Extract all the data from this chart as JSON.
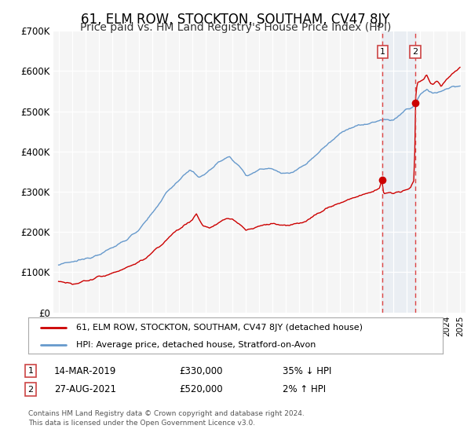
{
  "title": "61, ELM ROW, STOCKTON, SOUTHAM, CV47 8JY",
  "subtitle": "Price paid vs. HM Land Registry's House Price Index (HPI)",
  "ylim": [
    0,
    700000
  ],
  "yticks": [
    0,
    100000,
    200000,
    300000,
    400000,
    500000,
    600000,
    700000
  ],
  "ytick_labels": [
    "£0",
    "£100K",
    "£200K",
    "£300K",
    "£400K",
    "£500K",
    "£600K",
    "£700K"
  ],
  "xlim_start": 1994.6,
  "xlim_end": 2025.4,
  "title_fontsize": 12,
  "subtitle_fontsize": 10,
  "background_color": "#ffffff",
  "plot_bg_color": "#f5f5f5",
  "grid_color": "#ffffff",
  "point1_x": 2019.2,
  "point1_y": 330000,
  "point1_label": "14-MAR-2019",
  "point1_price": "£330,000",
  "point1_hpi": "35% ↓ HPI",
  "point2_x": 2021.65,
  "point2_y": 520000,
  "point2_label": "27-AUG-2021",
  "point2_price": "£520,000",
  "point2_hpi": "2% ↑ HPI",
  "legend_line1": "61, ELM ROW, STOCKTON, SOUTHAM, CV47 8JY (detached house)",
  "legend_line2": "HPI: Average price, detached house, Stratford-on-Avon",
  "red_color": "#cc0000",
  "blue_color": "#6699cc",
  "marker_color": "#cc0000",
  "vline_color": "#dd4444",
  "shade_color": "#ccddf0",
  "footer": "Contains HM Land Registry data © Crown copyright and database right 2024.\nThis data is licensed under the Open Government Licence v3.0."
}
